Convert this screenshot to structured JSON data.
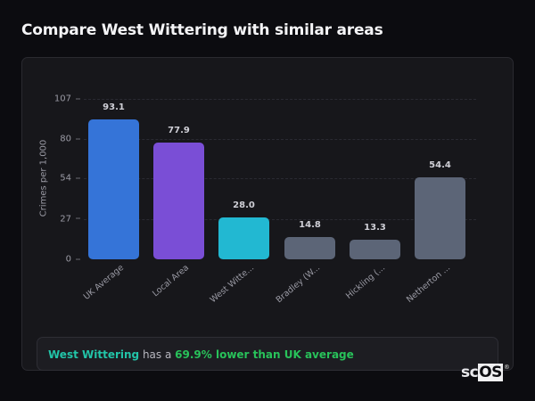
{
  "header": {
    "title": "Compare West Wittering with similar areas"
  },
  "chart_data": {
    "type": "bar",
    "title": "",
    "xlabel": "",
    "ylabel": "Crimes per 1,000",
    "ylim": [
      0,
      107
    ],
    "yticks": [
      0,
      27,
      54,
      80,
      107
    ],
    "grid": true,
    "categories": [
      "UK Average",
      "Local Area",
      "West Witte...",
      "Bradley (W...",
      "Hickling (...",
      "Netherton ..."
    ],
    "values": [
      93.1,
      77.9,
      28.0,
      14.8,
      13.3,
      54.4
    ],
    "value_labels": [
      "93.1",
      "77.9",
      "28.0",
      "14.8",
      "13.3",
      "54.4"
    ],
    "colors": [
      "#3574d8",
      "#7a4ed6",
      "#22b8d2",
      "#5c6577",
      "#5c6577",
      "#5c6577"
    ]
  },
  "summary": {
    "place": "West Wittering",
    "middle": " has a ",
    "difference": "69.9% lower than UK average"
  },
  "logo": {
    "prefix": "sc",
    "boxed": "OS",
    "reg": "®"
  }
}
